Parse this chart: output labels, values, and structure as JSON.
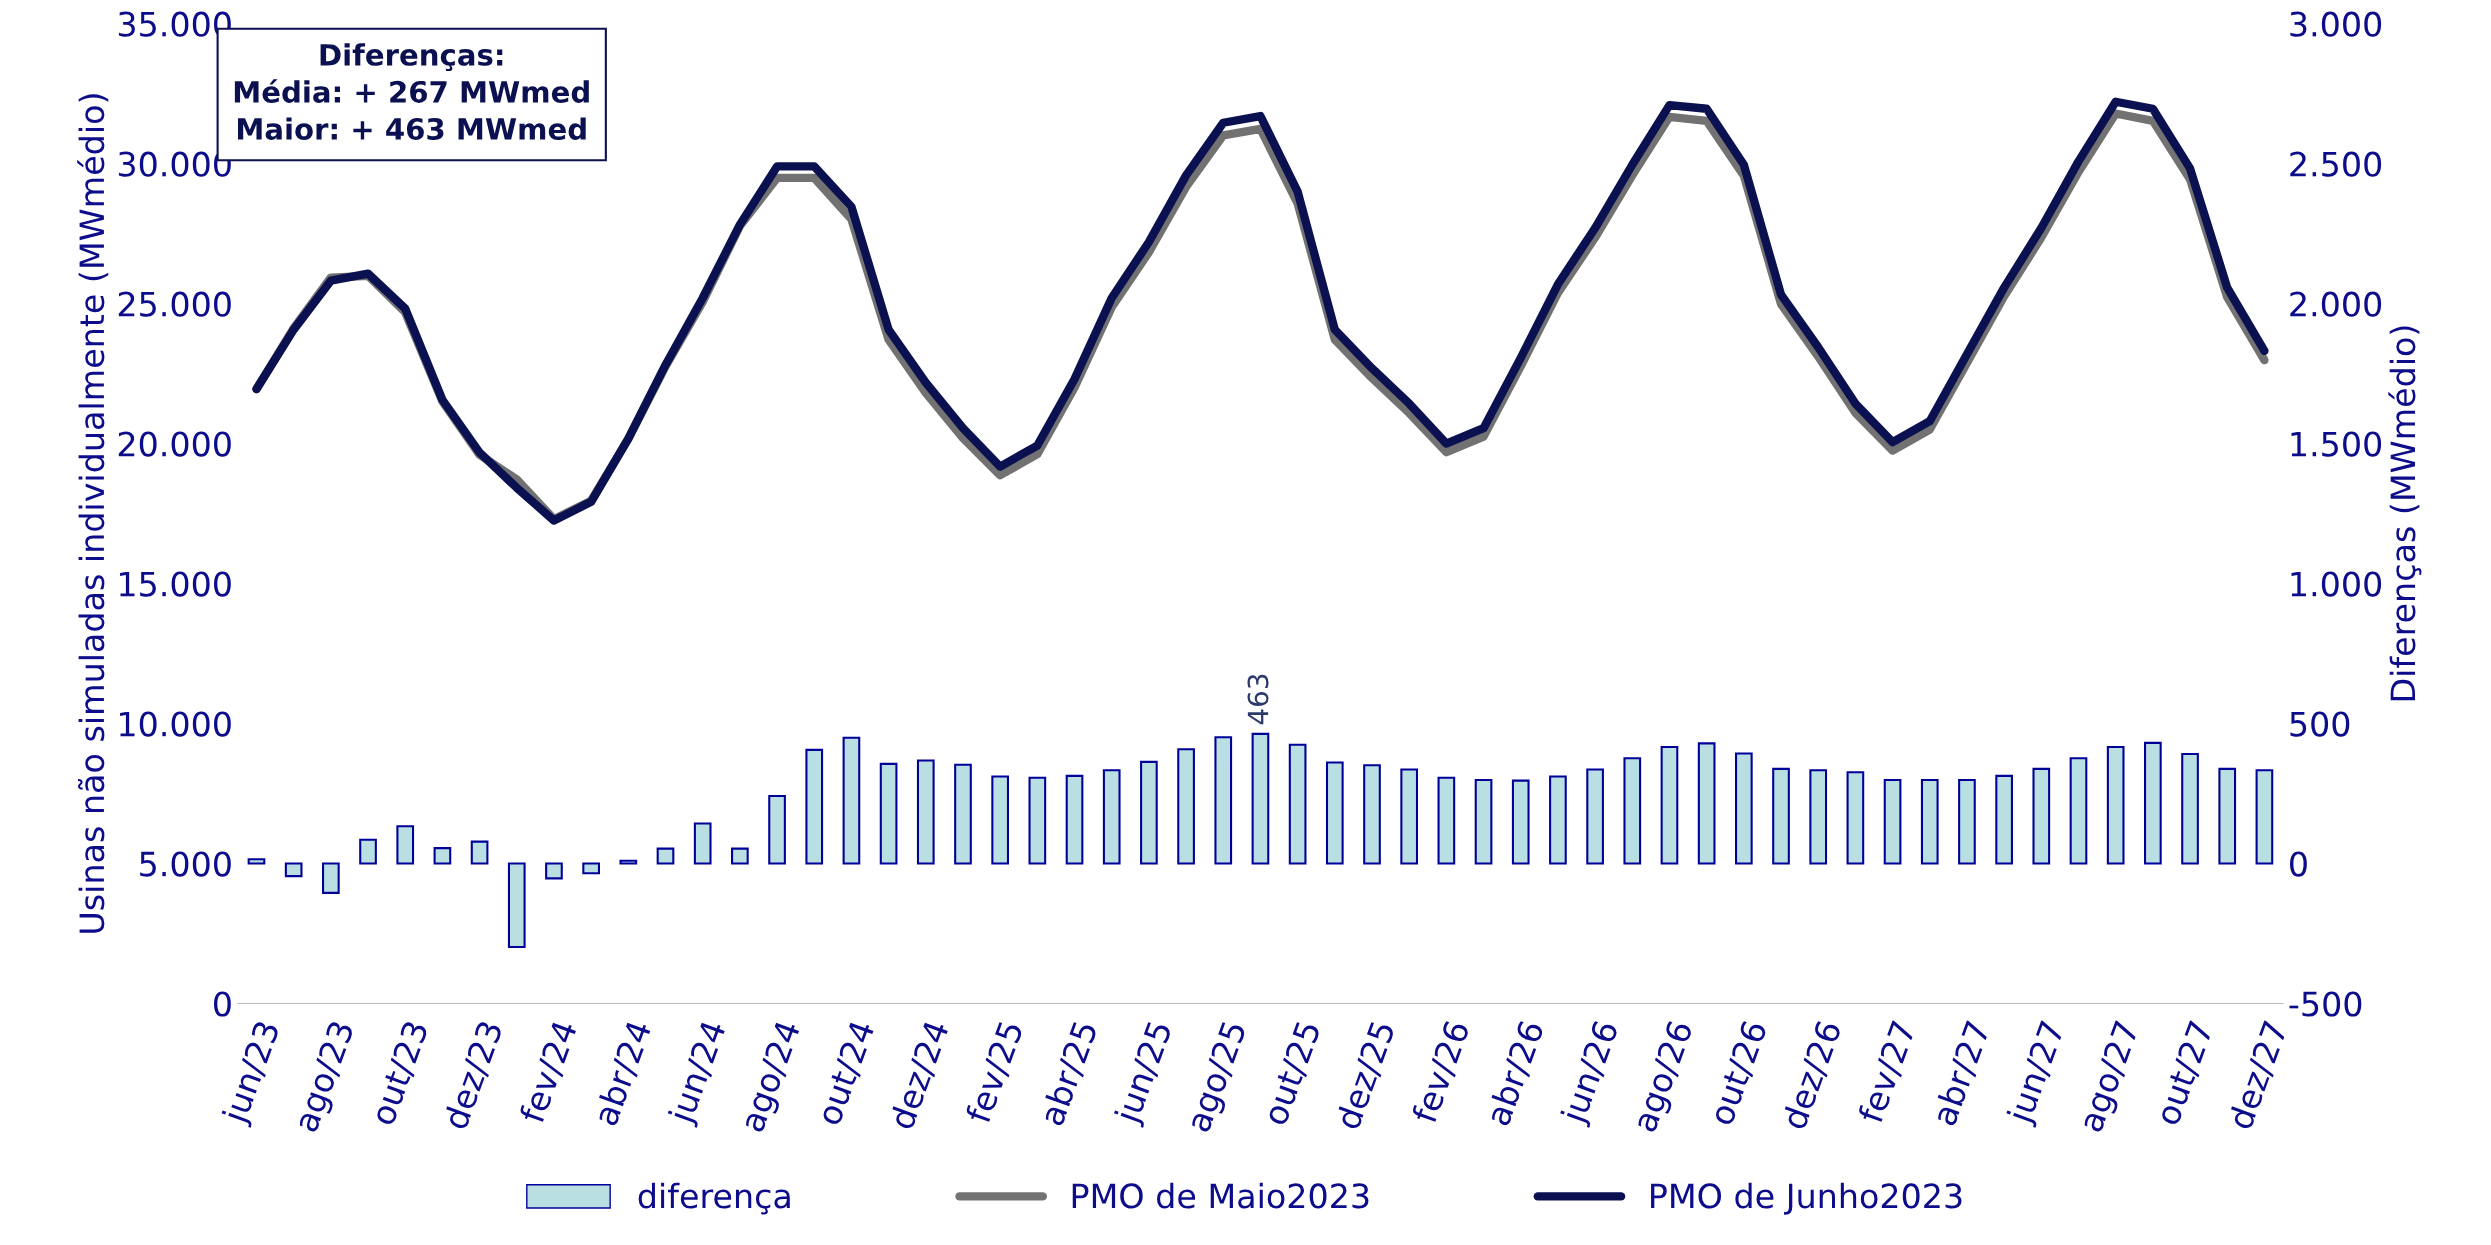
{
  "chart_data": {
    "type": "line",
    "ylabel": "Usinas não simuladas individualmente (MWmédio)",
    "y2label": "Diferenças (MWmédio)",
    "categories": [
      "jun/23",
      null,
      "ago/23",
      null,
      "out/23",
      null,
      "dez/23",
      null,
      "fev/24",
      null,
      "abr/24",
      null,
      "jun/24",
      null,
      "ago/24",
      null,
      "out/24",
      null,
      "dez/24",
      null,
      "fev/25",
      null,
      "abr/25",
      null,
      "jun/25",
      null,
      "ago/25",
      null,
      "out/25",
      null,
      "dez/25",
      null,
      "fev/26",
      null,
      "abr/26",
      null,
      "jun/26",
      null,
      "ago/26",
      null,
      "out/26",
      null,
      "dez/26",
      null,
      "fev/27",
      null,
      "abr/27",
      null,
      "jun/27",
      null,
      "ago/27",
      null,
      "out/27",
      null,
      "dez/27"
    ],
    "series": [
      {
        "name": "diferença",
        "type": "bar",
        "axis": "y2",
        "color": "#b9dfe3",
        "values": [
          15,
          -45,
          -105,
          85,
          133,
          55,
          78,
          -298,
          -53,
          -35,
          10,
          53,
          143,
          53,
          241,
          406,
          449,
          356,
          368,
          353,
          311,
          306,
          313,
          333,
          363,
          408,
          451,
          463,
          424,
          361,
          351,
          336,
          306,
          298,
          296,
          311,
          336,
          376,
          416,
          429,
          393,
          338,
          333,
          326,
          298,
          298,
          298,
          313,
          338,
          376,
          416,
          431,
          391,
          338,
          333
        ],
        "value_labels": [
          null,
          null,
          null,
          null,
          null,
          null,
          null,
          null,
          null,
          null,
          null,
          null,
          null,
          null,
          null,
          null,
          null,
          null,
          null,
          null,
          null,
          null,
          null,
          null,
          null,
          null,
          null,
          "463",
          null,
          null,
          null,
          null,
          null,
          null,
          null,
          null,
          null,
          null,
          null,
          null,
          null,
          null,
          null,
          null,
          null,
          null,
          null,
          null,
          null,
          null,
          null,
          null,
          null,
          null,
          null
        ]
      },
      {
        "name": "PMO de Maio2023",
        "color": "#727272",
        "values": [
          21940,
          24120,
          25930,
          25990,
          24690,
          21510,
          19600,
          18720,
          17300,
          17960,
          20170,
          22760,
          25060,
          27770,
          29490,
          29490,
          28010,
          23710,
          21810,
          20200,
          18870,
          19620,
          22000,
          24870,
          26840,
          29170,
          31010,
          31240,
          28580,
          23710,
          22340,
          21090,
          19690,
          20250,
          22760,
          25380,
          27360,
          29580,
          31670,
          31530,
          29570,
          24980,
          23110,
          21100,
          19750,
          20500,
          22880,
          25260,
          27360,
          29700,
          31790,
          31530,
          29440,
          25230,
          22980
        ]
      },
      {
        "name": "PMO de Junho2023",
        "color": "#0b1150",
        "values": [
          21950,
          24070,
          25820,
          26070,
          24820,
          21560,
          19680,
          18420,
          17250,
          17920,
          20180,
          22810,
          25200,
          27820,
          29900,
          29900,
          28460,
          24070,
          22180,
          20550,
          19180,
          19930,
          22310,
          25200,
          27200,
          29580,
          31460,
          31700,
          29000,
          24070,
          22690,
          21430,
          20000,
          20550,
          23060,
          25690,
          27700,
          29960,
          32090,
          31960,
          29960,
          25320,
          23440,
          21430,
          20050,
          20800,
          23190,
          25570,
          27700,
          30080,
          32210,
          31960,
          29830,
          25570,
          23310
        ]
      }
    ],
    "ylim": [
      0,
      35000
    ],
    "yticks": [
      0,
      {
        "value": 5000,
        "label": "5.000"
      },
      {
        "value": 10000,
        "label": "10.000"
      },
      {
        "value": 15000,
        "label": "15.000"
      },
      {
        "value": 20000,
        "label": "20.000"
      },
      {
        "value": 25000,
        "label": "25.000"
      },
      {
        "value": 30000,
        "label": "30.000"
      },
      {
        "value": 35000,
        "label": "35.000"
      }
    ],
    "y2lim": [
      -500,
      3000
    ],
    "y2ticks": [
      -500,
      0,
      500,
      {
        "value": 1000,
        "label": "1.000"
      },
      {
        "value": 1500,
        "label": "1.500"
      },
      {
        "value": 2000,
        "label": "2.000"
      },
      {
        "value": 2500,
        "label": "2.500"
      },
      {
        "value": 3000,
        "label": "3.000"
      }
    ],
    "annotations": [
      "Diferenças:\nMédia: + 267 MWmed\nMaior: + 463 MWmed"
    ],
    "legend": "bottom",
    "grid": false,
    "line_style": "solid",
    "marker": "none"
  }
}
